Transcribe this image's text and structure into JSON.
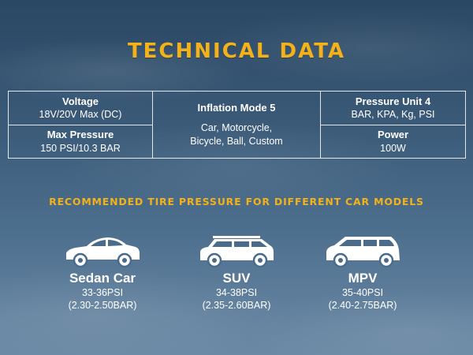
{
  "title": "TECHNICAL DATA",
  "specs": {
    "voltage": {
      "label": "Voltage",
      "value": "18V/20V Max (DC)"
    },
    "max_pressure": {
      "label": "Max Pressure",
      "value": "150 PSI/10.3 BAR"
    },
    "inflation_mode": {
      "label": "Inflation Mode  5",
      "value_line1": "Car, Motorcycle,",
      "value_line2": "Bicycle, Ball, Custom"
    },
    "pressure_unit": {
      "label": "Pressure Unit 4",
      "value": "BAR, KPA, Kg, PSI"
    },
    "power": {
      "label": "Power",
      "value": "100W"
    }
  },
  "subtitle": "RECOMMENDED TIRE PRESSURE FOR DIFFERENT CAR MODELS",
  "cars": [
    {
      "name": "Sedan Car",
      "psi": "33-36PSI",
      "bar": "(2.30-2.50BAR)",
      "icon": "sedan-icon"
    },
    {
      "name": "SUV",
      "psi": "34-38PSI",
      "bar": "(2.35-2.60BAR)",
      "icon": "suv-icon"
    },
    {
      "name": "MPV",
      "psi": "35-40PSI",
      "bar": "(2.40-2.75BAR)",
      "icon": "mpv-icon"
    }
  ],
  "colors": {
    "accent": "#f3b21a",
    "text": "#ffffff"
  }
}
